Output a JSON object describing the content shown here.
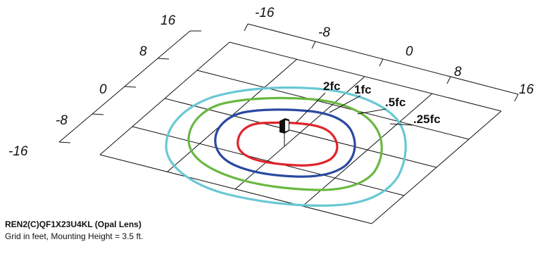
{
  "title": "REN2(C)QF1X23U4KL (Opal Lens)",
  "note": "Grid in feet, Mounting Height = 3.5 ft.",
  "left_axis": {
    "ticks": [
      "16",
      "8",
      "0",
      "-8",
      "-16"
    ]
  },
  "right_axis": {
    "ticks": [
      "-16",
      "-8",
      "0",
      "8",
      "16"
    ]
  },
  "isolines": [
    {
      "label": "2fc",
      "value": 2,
      "color": "#e0242b"
    },
    {
      "label": "1fc",
      "value": 1,
      "color": "#2a4aa0"
    },
    {
      "label": ".5fc",
      "value": 0.5,
      "color": "#6ab842"
    },
    {
      "label": ".25fc",
      "value": 0.25,
      "color": "#68c8d4"
    }
  ],
  "grid": {
    "min": -16,
    "max": 16,
    "step": 8,
    "color": "#111111"
  },
  "fixture": {
    "color": "#111111"
  }
}
